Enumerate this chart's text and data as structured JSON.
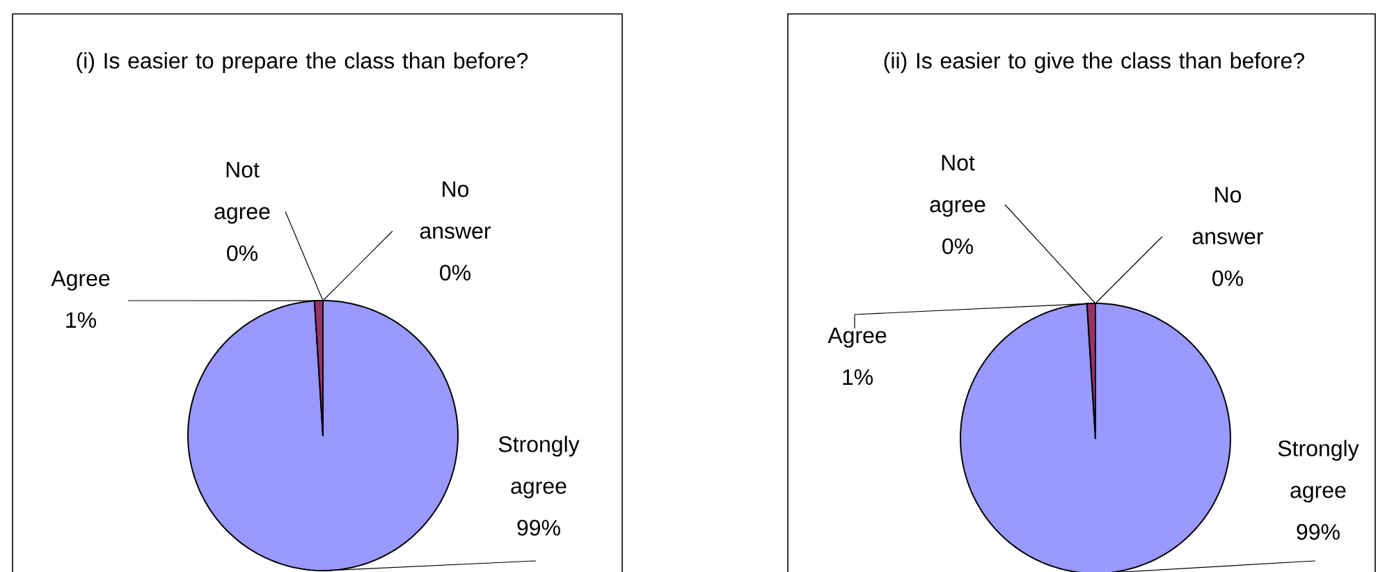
{
  "chart_data": [
    {
      "type": "pie",
      "title": "(i) Is easier to prepare the class than before?",
      "categories": [
        "Strongly agree",
        "Agree",
        "Not agree",
        "No answer"
      ],
      "values": [
        99,
        1,
        0,
        0
      ],
      "value_labels": [
        "99%",
        "1%",
        "0%",
        "0%"
      ],
      "colors": [
        "#9999ff",
        "#993366",
        "#ffffcc",
        "#ccffff"
      ]
    },
    {
      "type": "pie",
      "title": "(ii) Is easier to give the class than before?",
      "categories": [
        "Strongly agree",
        "Agree",
        "Not agree",
        "No answer"
      ],
      "values": [
        99,
        1,
        0,
        0
      ],
      "value_labels": [
        "99%",
        "1%",
        "0%",
        "0%"
      ],
      "colors": [
        "#9999ff",
        "#993366",
        "#ffffcc",
        "#ccffff"
      ]
    }
  ]
}
